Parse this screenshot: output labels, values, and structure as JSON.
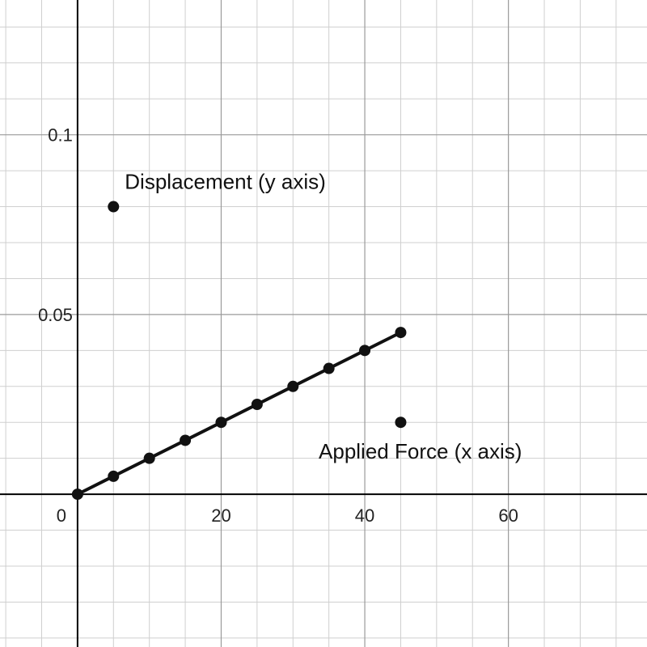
{
  "chart_data": {
    "type": "scatter",
    "title": "",
    "xlabel": "",
    "ylabel": "",
    "xlim": [
      -10.8,
      79.3
    ],
    "ylim": [
      -0.0425,
      0.1375
    ],
    "grid": true,
    "minor_x_step": 5,
    "minor_y_step": 0.01,
    "major_x_step": 20,
    "major_y_step": 0.05,
    "x_ticks": [
      {
        "value": 0,
        "label": "0"
      },
      {
        "value": 20,
        "label": "20"
      },
      {
        "value": 40,
        "label": "40"
      },
      {
        "value": 60,
        "label": "60"
      }
    ],
    "y_ticks": [
      {
        "value": 0.05,
        "label": "0.05"
      },
      {
        "value": 0.1,
        "label": "0.1"
      }
    ],
    "line": {
      "x": [
        0,
        45
      ],
      "y": [
        0,
        0.045
      ],
      "color": "#111111"
    },
    "series": [
      {
        "x": [
          0,
          5,
          10,
          15,
          20,
          25,
          30,
          35,
          40,
          45
        ],
        "y": [
          0,
          0.005,
          0.01,
          0.015,
          0.02,
          0.025,
          0.03,
          0.035,
          0.04,
          0.045
        ],
        "color": "#111111"
      }
    ],
    "annotations": [
      {
        "text": "Displacement (y axis)",
        "x": 5,
        "y": 0.08,
        "label_position": "above-right"
      },
      {
        "text": "Applied Force (x axis)",
        "x": 45,
        "y": 0.02,
        "label_position": "below-left"
      }
    ]
  }
}
